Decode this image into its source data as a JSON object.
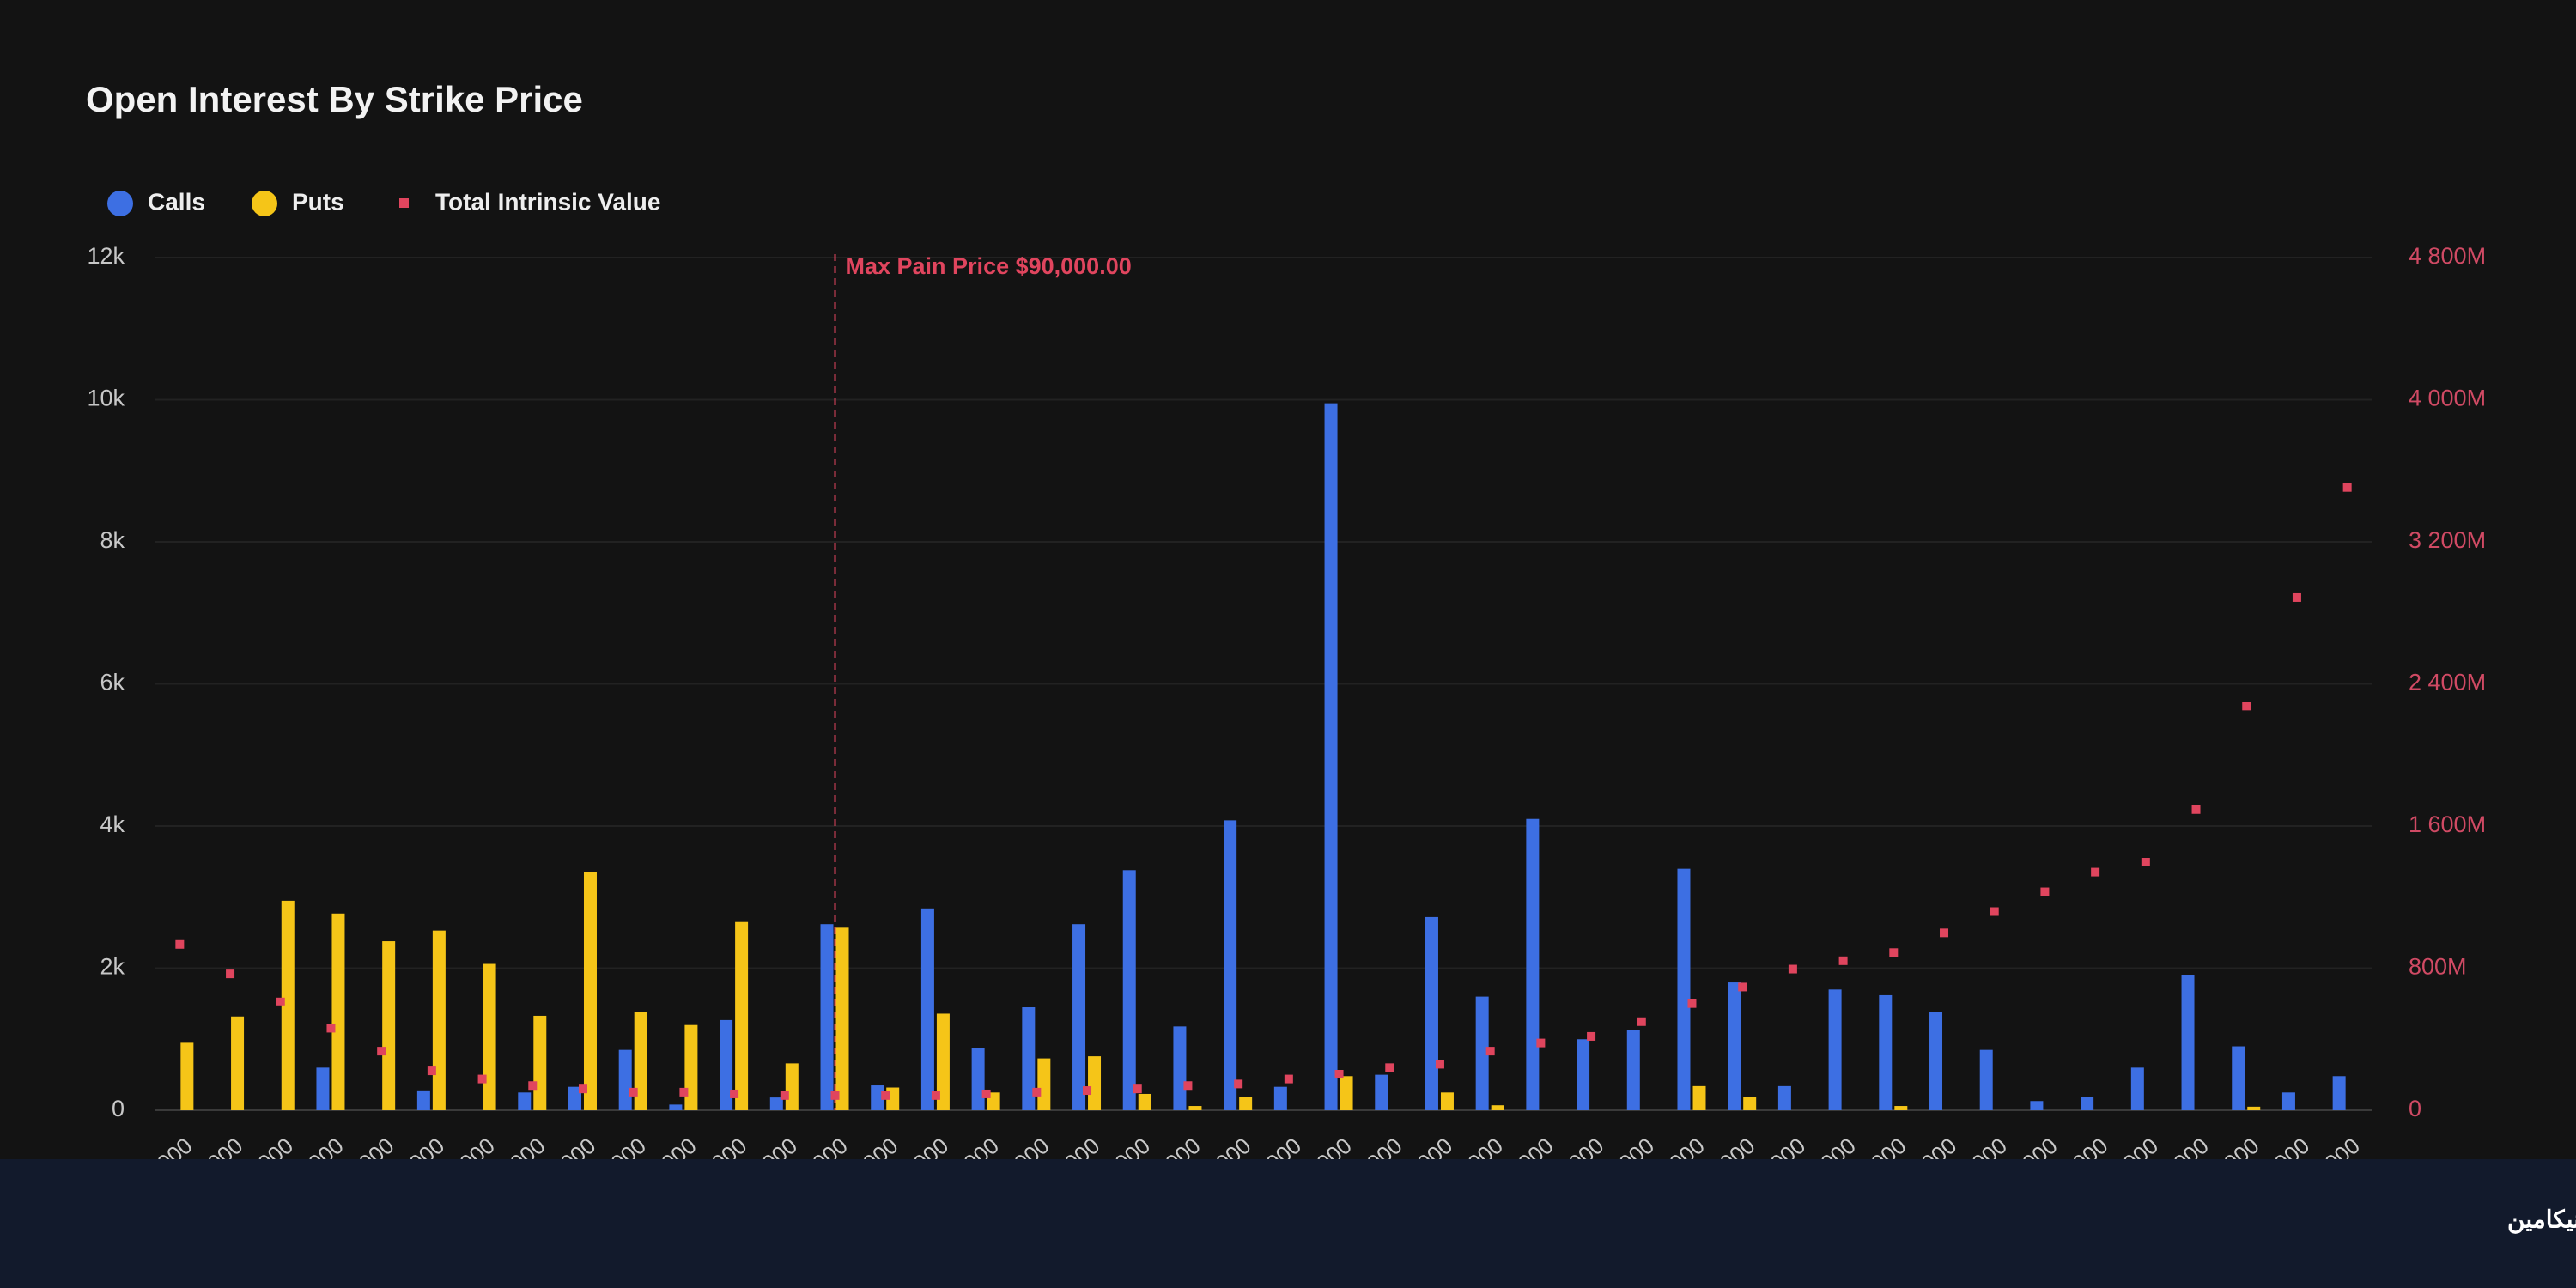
{
  "chart_data": {
    "type": "bar",
    "title": "Open Interest By Strike Price",
    "categories": [
      "000",
      "000",
      "000",
      "000",
      "000",
      "000",
      "000",
      "000",
      "000",
      "000",
      "000",
      "000",
      "000",
      "000",
      "000",
      "000",
      "000",
      "000",
      "000",
      "000",
      "000",
      "000",
      "000",
      "000",
      "000",
      "000",
      "000",
      "000",
      "000",
      "000",
      "000",
      "000",
      "000",
      "000",
      "000",
      "000",
      "000",
      "000",
      "000",
      "000",
      "000",
      "000",
      "000",
      "000"
    ],
    "series": [
      {
        "name": "Calls",
        "color": "#3d6fe3",
        "values": [
          0,
          0,
          0,
          600,
          0,
          280,
          0,
          250,
          330,
          850,
          80,
          1270,
          180,
          2620,
          350,
          2830,
          880,
          1450,
          2620,
          3380,
          1180,
          4080,
          330,
          9950,
          500,
          2720,
          1600,
          4100,
          1000,
          1130,
          3400,
          1800,
          340,
          1700,
          1620,
          1380,
          850,
          130,
          190,
          600,
          1900,
          900,
          250,
          480
        ]
      },
      {
        "name": "Puts",
        "color": "#f5c518",
        "values": [
          950,
          1320,
          2950,
          2770,
          2380,
          2530,
          2060,
          1330,
          3350,
          1380,
          1200,
          2650,
          660,
          2570,
          320,
          1360,
          250,
          730,
          760,
          230,
          60,
          190,
          0,
          480,
          0,
          250,
          70,
          0,
          0,
          0,
          340,
          190,
          0,
          0,
          60,
          0,
          0,
          0,
          0,
          0,
          0,
          50,
          0,
          0
        ]
      },
      {
        "name": "Total Intrinsic Value",
        "color": "#e0455e",
        "axis": "y2",
        "values": [
          934,
          768,
          610,
          462,
          333,
          222,
          176,
          139,
          120,
          102,
          102,
          92,
          83,
          83,
          83,
          83,
          92,
          102,
          111,
          120,
          139,
          148,
          176,
          203,
          240,
          259,
          333,
          379,
          416,
          499,
          601,
          694,
          795,
          842,
          888,
          999,
          1119,
          1230,
          1341,
          1397,
          1693,
          2275,
          2886,
          3506
        ]
      }
    ],
    "ylim": [
      0,
      12000
    ],
    "yticks": [
      0,
      {
        "value": 2000,
        "label": "2k"
      },
      {
        "value": 4000,
        "label": "4k"
      },
      {
        "value": 6000,
        "label": "6k"
      },
      {
        "value": 8000,
        "label": "8k"
      },
      {
        "value": 10000,
        "label": "10k"
      },
      {
        "value": 12000,
        "label": "12k"
      }
    ],
    "y2lim": [
      0,
      4800
    ],
    "y2ticks": [
      0,
      {
        "value": 800,
        "label": "800M"
      },
      {
        "value": 1600,
        "label": "1 600M"
      },
      {
        "value": 2400,
        "label": "2 400M"
      },
      {
        "value": 3200,
        "label": "3 200M"
      },
      {
        "value": 4000,
        "label": "4 000M"
      },
      {
        "value": 4800,
        "label": "4 800M"
      }
    ],
    "grid": true,
    "annotations": [
      {
        "text": "Max Pain Price $90,000.00",
        "category_index": 13
      }
    ]
  },
  "footer": {
    "brand": "آنیکامین"
  }
}
